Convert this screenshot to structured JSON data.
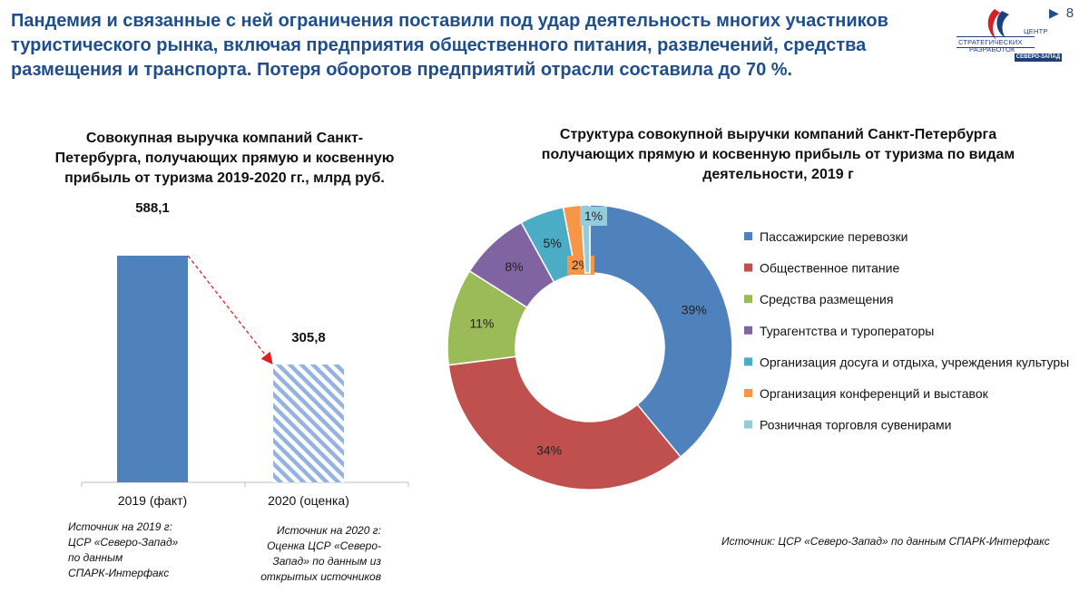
{
  "header": {
    "headline": "Пандемия и связанные с ней ограничения поставили под удар деятельность многих участников туристического рынка, включая предприятия общественного питания, развлечений, средства размещения и транспорта. Потеря оборотов предприятий отрасли составила до 70 %.",
    "page_number": "8",
    "nav_icon": "play-arrow-icon"
  },
  "logo": {
    "line1": "ЦЕНТР",
    "line2": "СТРАТЕГИЧЕСКИХ",
    "line3": "РАЗРАБОТОК",
    "line4": "СЕВЕРО-ЗАПАД",
    "colors": {
      "blue": "#1f3f7a",
      "red": "#d4202a"
    }
  },
  "chart_data": [
    {
      "type": "bar",
      "title": "Совокупная выручка компаний Санкт-Петербурга, получающих прямую и косвенную прибыль от туризма 2019-2020 гг., млрд руб.",
      "categories": [
        "2019 (факт)",
        "2020 (оценка)"
      ],
      "values": [
        588.1,
        305.8
      ],
      "value_labels": [
        "588,1",
        "305,8"
      ],
      "ylim": [
        0,
        588.1
      ],
      "colors": [
        "#4f81bd",
        "#95b3e0"
      ],
      "second_bar_pattern": "diagonal-hatch",
      "arrow_color": "#e02020",
      "grid": false
    },
    {
      "type": "pie",
      "variant": "donut",
      "title": "Структура совокупной выручки компаний Санкт-Петербурга получающих прямую и косвенную прибыль от туризма по видам деятельности, 2019 г",
      "legend_position": "right",
      "slices": [
        {
          "label": "Пассажирские перевозки",
          "value": 39,
          "value_label": "39%",
          "color": "#4f81bd"
        },
        {
          "label": "Общественное питание",
          "value": 34,
          "value_label": "34%",
          "color": "#c0504d"
        },
        {
          "label": "Средства размещения",
          "value": 11,
          "value_label": "11%",
          "color": "#9bbb59"
        },
        {
          "label": "Турагентства и туроператоры",
          "value": 8,
          "value_label": "8%",
          "color": "#8064a2"
        },
        {
          "label": "Организация досуга и отдыха, учреждения культуры",
          "value": 5,
          "value_label": "5%",
          "color": "#4bacc6"
        },
        {
          "label": "Организация конференций и выставок",
          "value": 2,
          "value_label": "2%",
          "color": "#f79646"
        },
        {
          "label": "Розничная торговля сувенирами",
          "value": 1,
          "value_label": "1%",
          "color": "#93cddd"
        }
      ]
    }
  ],
  "notes": {
    "source_2019": [
      "Источник на 2019 г:",
      "ЦСР «Северо-Запад»",
      "по данным",
      "СПАРК-Интерфакс"
    ],
    "source_2020": [
      "Источник на 2020 г:",
      "Оценка ЦСР «Северо-",
      "Запад» по данным из",
      "открытых источников"
    ],
    "source_pie": "Источник: ЦСР «Северо-Запад» по данным СПАРК-Интерфакс"
  }
}
